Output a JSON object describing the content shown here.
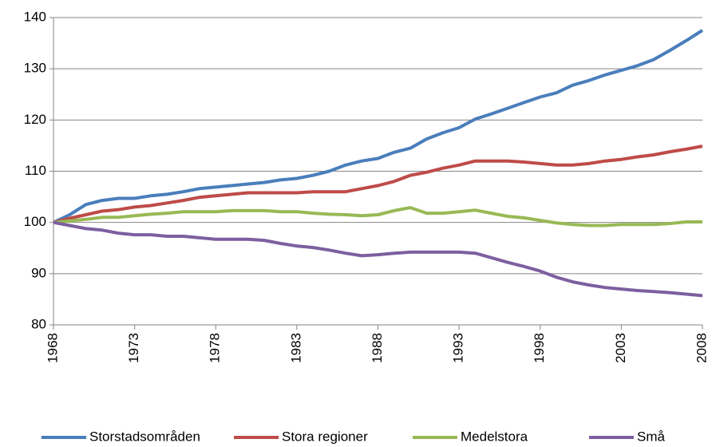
{
  "chart_data": {
    "type": "line",
    "x": [
      1968,
      1969,
      1970,
      1971,
      1972,
      1973,
      1974,
      1975,
      1976,
      1977,
      1978,
      1979,
      1980,
      1981,
      1982,
      1983,
      1984,
      1985,
      1986,
      1987,
      1988,
      1989,
      1990,
      1991,
      1992,
      1993,
      1994,
      1995,
      1996,
      1997,
      1998,
      1999,
      2000,
      2001,
      2002,
      2003,
      2004,
      2005,
      2006,
      2007,
      2008
    ],
    "xlim": [
      1968,
      2008
    ],
    "xticks": [
      1968,
      1973,
      1978,
      1983,
      1988,
      1993,
      1998,
      2003,
      2008
    ],
    "ylim": [
      80,
      140
    ],
    "yticks": [
      80,
      90,
      100,
      110,
      120,
      130,
      140
    ],
    "grid": true,
    "legend": "bottom",
    "series": [
      {
        "name": "Storstadsområden",
        "color": "#4a7ebb",
        "values": [
          100,
          101.5,
          103.5,
          104.3,
          104.7,
          104.7,
          105.2,
          105.5,
          106,
          106.6,
          106.9,
          107.2,
          107.5,
          107.8,
          108.3,
          108.6,
          109.2,
          110,
          111.2,
          112,
          112.5,
          113.7,
          114.5,
          116.3,
          117.5,
          118.5,
          120.2,
          121.2,
          122.3,
          123.4,
          124.5,
          125.3,
          126.8,
          127.7,
          128.8,
          129.7,
          130.6,
          131.8,
          133.6,
          135.5,
          137.5
        ]
      },
      {
        "name": "Stora regioner",
        "color": "#be4b48",
        "values": [
          100,
          100.8,
          101.5,
          102.2,
          102.5,
          103,
          103.3,
          103.8,
          104.3,
          104.9,
          105.2,
          105.5,
          105.8,
          105.8,
          105.8,
          105.8,
          106,
          106,
          106,
          106.6,
          107.2,
          108,
          109.2,
          109.8,
          110.6,
          111.2,
          112,
          112,
          112,
          111.8,
          111.5,
          111.2,
          111.2,
          111.5,
          112,
          112.3,
          112.8,
          113.2,
          113.8,
          114.3,
          114.9
        ]
      },
      {
        "name": "Medelstora",
        "color": "#98b954",
        "values": [
          100,
          100.3,
          100.6,
          101,
          101,
          101.3,
          101.6,
          101.8,
          102.1,
          102.1,
          102.1,
          102.3,
          102.3,
          102.3,
          102.1,
          102.1,
          101.8,
          101.6,
          101.5,
          101.3,
          101.5,
          102.3,
          102.9,
          101.8,
          101.8,
          102.1,
          102.4,
          101.8,
          101.2,
          100.9,
          100.4,
          99.9,
          99.6,
          99.4,
          99.4,
          99.6,
          99.6,
          99.6,
          99.8,
          100.1,
          100.1
        ]
      },
      {
        "name": "Små",
        "color": "#7d5fa0",
        "values": [
          100,
          99.4,
          98.8,
          98.5,
          97.9,
          97.6,
          97.6,
          97.3,
          97.3,
          97,
          96.7,
          96.7,
          96.7,
          96.5,
          95.9,
          95.4,
          95.1,
          94.6,
          94,
          93.5,
          93.7,
          94,
          94.2,
          94.2,
          94.2,
          94.2,
          94,
          93.1,
          92.2,
          91.4,
          90.5,
          89.3,
          88.4,
          87.8,
          87.3,
          87,
          86.7,
          86.5,
          86.3,
          86,
          85.7
        ]
      }
    ]
  }
}
